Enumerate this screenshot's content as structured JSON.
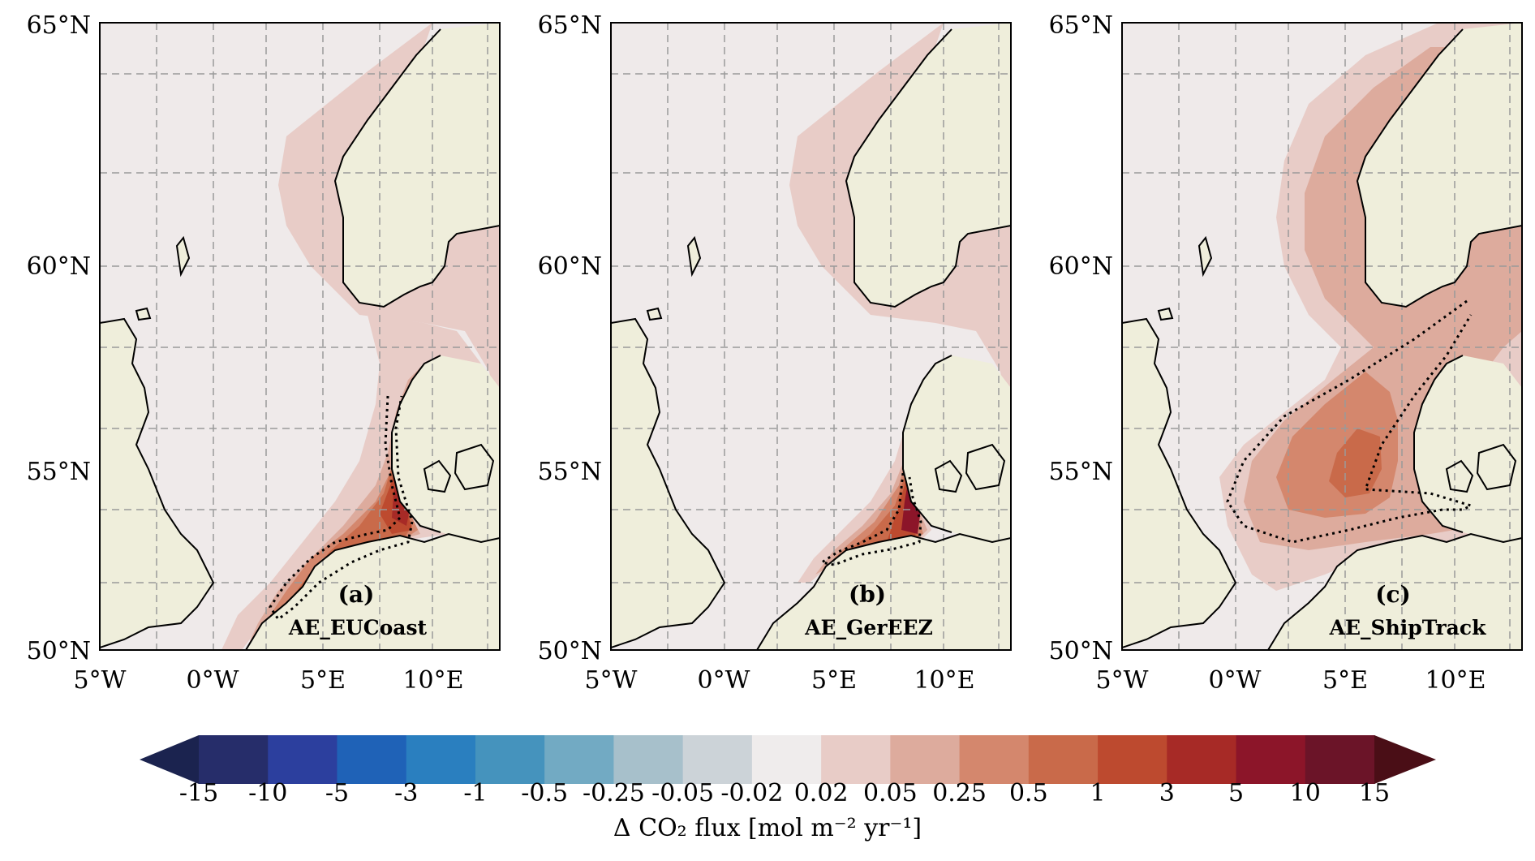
{
  "panels": [
    {
      "id": "a",
      "tag": "(a)",
      "name": "AE_EUCoast"
    },
    {
      "id": "b",
      "tag": "(b)",
      "name": "AE_GerEEZ"
    },
    {
      "id": "c",
      "tag": "(c)",
      "name": "AE_ShipTrack"
    }
  ],
  "lat_labels": [
    "65°N",
    "60°N",
    "55°N",
    "50°N"
  ],
  "lon_labels": [
    "5°W",
    "0°W",
    "5°E",
    "10°E"
  ],
  "colorbar": {
    "ticks": [
      "-15",
      "-10",
      "-5",
      "-3",
      "-1",
      "-0.5",
      "-0.25",
      "-0.05",
      "-0.02",
      "0.02",
      "0.05",
      "0.25",
      "0.5",
      "1",
      "3",
      "5",
      "10",
      "15"
    ],
    "colors": [
      "#262d6a",
      "#2c3f9e",
      "#1f62b7",
      "#2a7fbf",
      "#4593bd",
      "#72aac3",
      "#a7c0cb",
      "#ccd3d8",
      "#efecec",
      "#e8ccc7",
      "#ddab9d",
      "#d4876d",
      "#c96a4a",
      "#bd4a2f",
      "#a72a26",
      "#8c1529",
      "#6b1428"
    ],
    "under_color": "#1b234f",
    "over_color": "#4a0e16",
    "label": "Δ CO₂ flux [mol m⁻² yr⁻¹]"
  },
  "colors": {
    "land": "#efeedb",
    "ocean": "#efeaea",
    "level_1": "#e8ccc7",
    "level_2": "#ddab9d",
    "level_3": "#d4876d",
    "level_4": "#c96a4a",
    "level_5": "#bd4a2f",
    "level_6": "#a72a26",
    "level_7": "#8c1529"
  }
}
